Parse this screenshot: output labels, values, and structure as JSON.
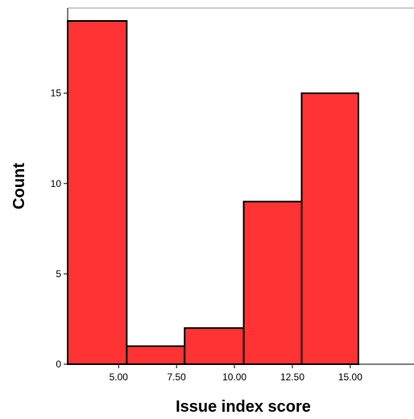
{
  "chart_data": {
    "type": "bar",
    "subtype": "histogram",
    "xlabel": "Issue index score",
    "ylabel": "Count",
    "x_tick_labels": [
      "5.00",
      "7.50",
      "10.00",
      "12.50",
      "15.00"
    ],
    "x_ticks": [
      5.0,
      7.5,
      10.0,
      12.5,
      15.0
    ],
    "y_ticks": [
      0,
      5,
      10,
      15
    ],
    "xlim": [
      2.8,
      17.75
    ],
    "ylim": [
      0,
      19
    ],
    "bins": [
      {
        "start": 2.8,
        "end": 5.35,
        "value": 19
      },
      {
        "start": 5.35,
        "end": 7.85,
        "value": 1
      },
      {
        "start": 7.85,
        "end": 10.4,
        "value": 2
      },
      {
        "start": 10.4,
        "end": 12.9,
        "value": 9
      },
      {
        "start": 12.9,
        "end": 15.35,
        "value": 15
      }
    ],
    "bar_color": "#FF3333",
    "grid": false
  }
}
